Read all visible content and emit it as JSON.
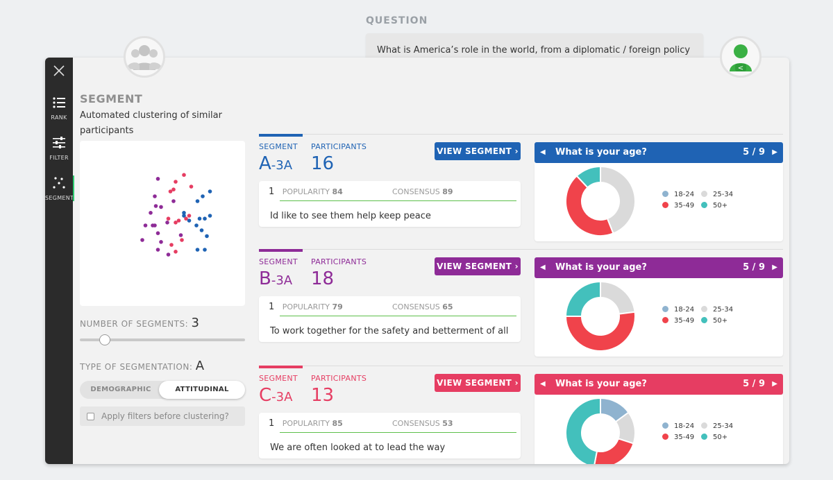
{
  "question": {
    "label": "QUESTION",
    "text": "What is America’s role in the world, from a diplomatic / foreign policy perspective?"
  },
  "nav": {
    "items": [
      {
        "label": "RANK",
        "icon": "rank-list-icon"
      },
      {
        "label": "FILTER",
        "icon": "filter-sliders-icon"
      },
      {
        "label": "SEGMENT",
        "icon": "segment-dots-icon"
      }
    ]
  },
  "left": {
    "title": "SEGMENT",
    "description": "Automated clustering of similar participants",
    "num_segments_label": "NUMBER OF SEGMENTS:",
    "num_segments_value": "3",
    "type_label": "TYPE OF SEGMENTATION:",
    "type_value": "A",
    "toggle": {
      "option1": "DEMOGRAPHIC",
      "option2": "ATTITUDINAL",
      "selected": "ATTITUDINAL"
    },
    "apply_filters": "Apply filters before clustering?"
  },
  "scatter_points": {
    "colors": {
      "A": "#1f63b4",
      "B": "#8e2b97",
      "C": "#e63d62"
    },
    "points": [
      {
        "c": "A",
        "x": 0.85,
        "y": 0.2
      },
      {
        "c": "A",
        "x": 0.78,
        "y": 0.25
      },
      {
        "c": "A",
        "x": 0.73,
        "y": 0.3
      },
      {
        "c": "A",
        "x": 0.6,
        "y": 0.42
      },
      {
        "c": "A",
        "x": 0.85,
        "y": 0.45
      },
      {
        "c": "A",
        "x": 0.8,
        "y": 0.48
      },
      {
        "c": "A",
        "x": 0.75,
        "y": 0.48
      },
      {
        "c": "A",
        "x": 0.77,
        "y": 0.6
      },
      {
        "c": "A",
        "x": 0.65,
        "y": 0.5
      },
      {
        "c": "A",
        "x": 0.72,
        "y": 0.55
      },
      {
        "c": "A",
        "x": 0.82,
        "y": 0.66
      },
      {
        "c": "A",
        "x": 0.73,
        "y": 0.8
      },
      {
        "c": "A",
        "x": 0.8,
        "y": 0.8
      },
      {
        "c": "A",
        "x": 0.6,
        "y": 0.45
      },
      {
        "c": "B",
        "x": 0.35,
        "y": 0.07
      },
      {
        "c": "B",
        "x": 0.32,
        "y": 0.25
      },
      {
        "c": "B",
        "x": 0.33,
        "y": 0.35
      },
      {
        "c": "B",
        "x": 0.28,
        "y": 0.42
      },
      {
        "c": "B",
        "x": 0.38,
        "y": 0.36
      },
      {
        "c": "B",
        "x": 0.23,
        "y": 0.55
      },
      {
        "c": "B",
        "x": 0.3,
        "y": 0.55
      },
      {
        "c": "B",
        "x": 0.32,
        "y": 0.55
      },
      {
        "c": "B",
        "x": 0.44,
        "y": 0.52
      },
      {
        "c": "B",
        "x": 0.2,
        "y": 0.7
      },
      {
        "c": "B",
        "x": 0.35,
        "y": 0.63
      },
      {
        "c": "B",
        "x": 0.38,
        "y": 0.72
      },
      {
        "c": "B",
        "x": 0.35,
        "y": 0.8
      },
      {
        "c": "B",
        "x": 0.45,
        "y": 0.85
      },
      {
        "c": "B",
        "x": 0.57,
        "y": 0.65
      },
      {
        "c": "B",
        "x": 0.5,
        "y": 0.3
      },
      {
        "c": "C",
        "x": 0.6,
        "y": 0.03
      },
      {
        "c": "C",
        "x": 0.52,
        "y": 0.1
      },
      {
        "c": "C",
        "x": 0.67,
        "y": 0.15
      },
      {
        "c": "C",
        "x": 0.47,
        "y": 0.2
      },
      {
        "c": "C",
        "x": 0.5,
        "y": 0.18
      },
      {
        "c": "C",
        "x": 0.55,
        "y": 0.5
      },
      {
        "c": "C",
        "x": 0.52,
        "y": 0.52
      },
      {
        "c": "C",
        "x": 0.45,
        "y": 0.48
      },
      {
        "c": "C",
        "x": 0.62,
        "y": 0.48
      },
      {
        "c": "C",
        "x": 0.58,
        "y": 0.7
      },
      {
        "c": "C",
        "x": 0.48,
        "y": 0.75
      },
      {
        "c": "C",
        "x": 0.52,
        "y": 0.82
      },
      {
        "c": "C",
        "x": 0.65,
        "y": 0.45
      }
    ]
  },
  "segments": [
    {
      "color": "#1f63b4",
      "segment_label": "SEGMENT",
      "participants_label": "PARTICIPANTS",
      "code": "A",
      "code_suffix": "-3A",
      "count": "16",
      "button": "VIEW SEGMENT ›",
      "response": {
        "rank": "1",
        "popularity_label": "POPULARITY",
        "popularity": "84",
        "consensus_label": "CONSENSUS",
        "consensus": "89",
        "text": "Id like to see them help keep peace"
      },
      "chart": {
        "title": "What is your age?",
        "pager": "5 / 9",
        "slices": [
          {
            "label": "18-24",
            "value": 0,
            "color": "#8fb3cf"
          },
          {
            "label": "25-34",
            "value": 44,
            "color": "#dadada"
          },
          {
            "label": "35-49",
            "value": 44,
            "color": "#f0434b"
          },
          {
            "label": "50+",
            "value": 12,
            "color": "#43c0bc"
          }
        ]
      }
    },
    {
      "color": "#8e2b97",
      "segment_label": "SEGMENT",
      "participants_label": "PARTICIPANTS",
      "code": "B",
      "code_suffix": "-3A",
      "count": "18",
      "button": "VIEW SEGMENT ›",
      "response": {
        "rank": "1",
        "popularity_label": "POPULARITY",
        "popularity": "79",
        "consensus_label": "CONSENSUS",
        "consensus": "65",
        "text": "To work together for the safety and betterment of all involved."
      },
      "chart": {
        "title": "What is your age?",
        "pager": "5 / 9",
        "slices": [
          {
            "label": "18-24",
            "value": 0,
            "color": "#8fb3cf"
          },
          {
            "label": "25-34",
            "value": 23,
            "color": "#dadada"
          },
          {
            "label": "35-49",
            "value": 52,
            "color": "#f0434b"
          },
          {
            "label": "50+",
            "value": 25,
            "color": "#43c0bc"
          }
        ]
      }
    },
    {
      "color": "#e63d62",
      "segment_label": "SEGMENT",
      "participants_label": "PARTICIPANTS",
      "code": "C",
      "code_suffix": "-3A",
      "count": "13",
      "button": "VIEW SEGMENT ›",
      "response": {
        "rank": "1",
        "popularity_label": "POPULARITY",
        "popularity": "85",
        "consensus_label": "CONSENSUS",
        "consensus": "53",
        "text": "We are often looked at to lead the way"
      },
      "chart": {
        "title": "What is your age?",
        "pager": "5 / 9",
        "slices": [
          {
            "label": "18-24",
            "value": 15,
            "color": "#8fb3cf"
          },
          {
            "label": "25-34",
            "value": 15,
            "color": "#dadada"
          },
          {
            "label": "35-49",
            "value": 23,
            "color": "#f0434b"
          },
          {
            "label": "50+",
            "value": 47,
            "color": "#43c0bc"
          }
        ]
      }
    }
  ]
}
